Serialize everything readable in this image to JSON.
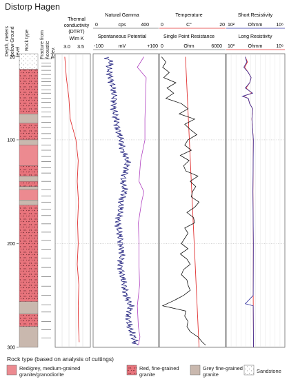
{
  "title": "Distorp Hagen",
  "col_labels": {
    "depth": "Depth, meters below Ground level",
    "rock": "Rock type",
    "fracture": "Fracture from Acoustic Telev."
  },
  "colors": {
    "red_granite": "#e8747c",
    "redgrey_granite": "#e38a8f",
    "grey_granite": "#c8b7ae",
    "sandstone": "#ffffff",
    "gamma": "#1a1a7a",
    "sp": "#b040c0",
    "temperature": "#e03030",
    "spr": "#111111",
    "short_res": "#3030a0",
    "long_res": "#e03030",
    "dtrt": "#e03030"
  },
  "chart_data": [
    {
      "type": "line",
      "panel": "thermal",
      "title": "Thermal conductivity (DTRT)",
      "unit": "W/m K",
      "xlim": [
        2.75,
        3.85
      ],
      "ticks": [
        "3.0",
        "3.5"
      ],
      "ylim": [
        300,
        17
      ],
      "series": [
        {
          "depth": [
            20,
            40,
            60,
            80,
            100,
            120,
            140,
            160,
            180,
            200,
            220,
            240,
            260,
            280,
            295
          ],
          "values": [
            3.05,
            3.1,
            3.18,
            3.22,
            3.4,
            3.47,
            3.44,
            3.48,
            3.45,
            3.47,
            3.44,
            3.49,
            3.47,
            3.48,
            3.5
          ]
        }
      ]
    },
    {
      "type": "line",
      "panel": "gamma_sp",
      "axes": [
        {
          "title": "Natural Gamma",
          "unit": "cps",
          "min_label": "0",
          "max_label": "400",
          "xlim": [
            0,
            400
          ]
        },
        {
          "title": "Spontaneous Potential",
          "unit": "mV",
          "min_label": "-100",
          "max_label": "+100",
          "xlim": [
            -100,
            100
          ]
        }
      ],
      "ylim": [
        300,
        17
      ],
      "series": [
        {
          "depth": [
            20,
            25,
            30,
            40,
            50,
            60,
            70,
            80,
            90,
            100,
            110,
            120,
            130,
            140,
            150,
            160,
            170,
            180,
            190,
            200,
            210,
            220,
            230,
            240,
            250,
            260,
            270,
            280,
            290,
            298
          ],
          "values": [
            80,
            110,
            95,
            105,
            120,
            130,
            125,
            140,
            150,
            170,
            180,
            210,
            200,
            180,
            195,
            170,
            165,
            150,
            160,
            170,
            175,
            165,
            175,
            190,
            200,
            230,
            215,
            220,
            250,
            260
          ]
        },
        {
          "depth": [
            20,
            30,
            40,
            60,
            80,
            100,
            120,
            140,
            150,
            160,
            180,
            200,
            220,
            240,
            260,
            280,
            290,
            298
          ],
          "values": [
            55,
            35,
            62,
            60,
            58,
            58,
            45,
            40,
            55,
            48,
            38,
            40,
            40,
            42,
            35,
            38,
            43,
            38
          ]
        }
      ]
    },
    {
      "type": "line",
      "panel": "temp_spr",
      "axes": [
        {
          "title": "Temperature",
          "unit": "C°",
          "min_label": "",
          "max_label": "20",
          "xlim": [
            0,
            20
          ]
        },
        {
          "title": "Single Point Resistance",
          "unit": "Ohm",
          "min_label": "0",
          "max_label": "6000",
          "xlim": [
            0,
            6000
          ]
        }
      ],
      "ylim": [
        300,
        17
      ],
      "series": [
        {
          "depth": [
            20,
            300
          ],
          "values": [
            7.9,
            12.0
          ]
        },
        {
          "depth": [
            20,
            25,
            30,
            35,
            40,
            45,
            50,
            55,
            60,
            65,
            70,
            75,
            80,
            85,
            90,
            95,
            100,
            105,
            110,
            115,
            120,
            125,
            130,
            135,
            140,
            145,
            150,
            155,
            160,
            165,
            170,
            175,
            180,
            185,
            190,
            195,
            200,
            205,
            210,
            215,
            220,
            225,
            230,
            235,
            240,
            245,
            250,
            255,
            260,
            265,
            270,
            275,
            280,
            285,
            290,
            295,
            298
          ],
          "values": [
            200,
            600,
            300,
            900,
            400,
            1500,
            700,
            1300,
            600,
            2000,
            2600,
            1800,
            3200,
            2300,
            2800,
            3400,
            2600,
            2300,
            2900,
            1900,
            2700,
            2200,
            2400,
            3500,
            2800,
            3300,
            3000,
            2900,
            3600,
            3200,
            2500,
            3100,
            3200,
            2300,
            2600,
            2300,
            2000,
            2600,
            1900,
            2500,
            2800,
            2200,
            2000,
            2500,
            2600,
            2800,
            2200,
            1300,
            300,
            2400,
            2300,
            2600,
            2500,
            2800,
            3500,
            3900,
            4200
          ]
        }
      ]
    },
    {
      "type": "line",
      "panel": "resistivity",
      "axes": [
        {
          "title": "Short Resistivity",
          "unit": "Ohmm",
          "min_label": "10²",
          "max_label": "10⁶",
          "xlim": [
            2,
            6
          ],
          "scale": "log"
        },
        {
          "title": "Long Resistivity",
          "unit": "Ohmm",
          "min_label": "10²",
          "max_label": "10⁶",
          "xlim": [
            2,
            6
          ],
          "scale": "log"
        }
      ],
      "ylim": [
        300,
        17
      ],
      "series": [
        {
          "depth": [
            20,
            25,
            30,
            35,
            40,
            45,
            50,
            55,
            58,
            60,
            65,
            70,
            80,
            100,
            150,
            200,
            250,
            258,
            260,
            300
          ],
          "values": [
            3.3,
            3.4,
            3.2,
            3.5,
            3.7,
            3.6,
            3.3,
            3.8,
            3.1,
            3.5,
            3.6,
            3.8,
            3.75,
            3.85,
            3.82,
            3.85,
            3.84,
            3.3,
            3.84,
            3.86
          ]
        },
        {
          "depth": [
            20,
            25,
            30,
            35,
            40,
            45,
            50,
            55,
            58,
            60,
            65,
            70,
            80,
            100,
            150,
            200,
            250,
            300
          ],
          "values": [
            3.3,
            3.45,
            3.25,
            3.5,
            3.7,
            3.6,
            3.35,
            3.75,
            3.15,
            3.5,
            3.6,
            3.8,
            3.75,
            3.85,
            3.82,
            3.85,
            3.84,
            3.86
          ]
        }
      ]
    }
  ],
  "depth_ticks": [
    "20",
    "100",
    "200",
    "300"
  ],
  "rock_layers": [
    {
      "from": 17,
      "to": 32,
      "type": "sandstone"
    },
    {
      "from": 32,
      "to": 75,
      "type": "red"
    },
    {
      "from": 75,
      "to": 84,
      "type": "grey"
    },
    {
      "from": 84,
      "to": 100,
      "type": "red"
    },
    {
      "from": 100,
      "to": 105,
      "type": "grey"
    },
    {
      "from": 105,
      "to": 125,
      "type": "redgrey"
    },
    {
      "from": 125,
      "to": 135,
      "type": "red"
    },
    {
      "from": 135,
      "to": 140,
      "type": "grey"
    },
    {
      "from": 140,
      "to": 145,
      "type": "red"
    },
    {
      "from": 145,
      "to": 148,
      "type": "grey"
    },
    {
      "from": 148,
      "to": 158,
      "type": "redgrey"
    },
    {
      "from": 158,
      "to": 163,
      "type": "grey"
    },
    {
      "from": 163,
      "to": 256,
      "type": "red"
    },
    {
      "from": 256,
      "to": 268,
      "type": "grey"
    },
    {
      "from": 268,
      "to": 280,
      "type": "red"
    },
    {
      "from": 280,
      "to": 300,
      "type": "grey"
    }
  ],
  "fractures": [
    22,
    26,
    29,
    33,
    37,
    41,
    44,
    48,
    52,
    55,
    60,
    64,
    69,
    73,
    78,
    83,
    88,
    94,
    99,
    105,
    110,
    116,
    121,
    127,
    132,
    140,
    148,
    154,
    160,
    167,
    173,
    181,
    189,
    197,
    206,
    214,
    223,
    232,
    241,
    250,
    259,
    266,
    275,
    283,
    291
  ],
  "legend": {
    "title": "Rock type (based on analysis of cuttings)",
    "items": [
      {
        "label": "Red/grey, medium-grained granite/granodiorite",
        "type": "redgrey"
      },
      {
        "label": "Red, fine-grained granite",
        "type": "red"
      },
      {
        "label": "Grey fine-grained granite",
        "type": "grey"
      },
      {
        "label": "Sandstone",
        "type": "sandstone"
      }
    ]
  }
}
